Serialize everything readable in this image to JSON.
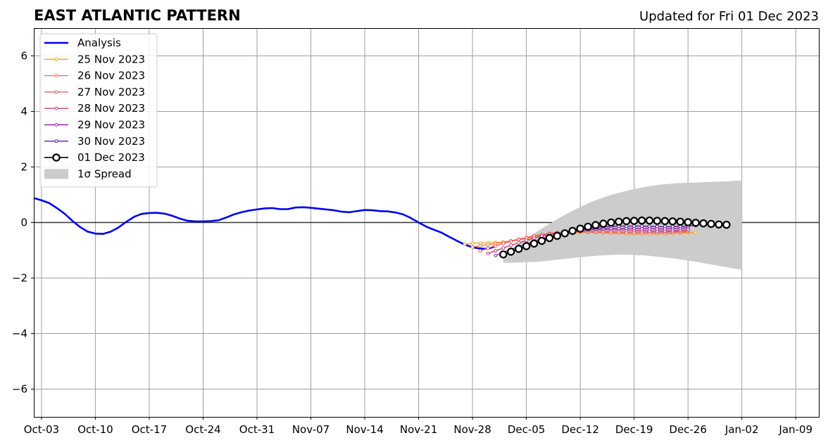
{
  "chart_data": {
    "type": "line",
    "title": "EAST ATLANTIC PATTERN",
    "subtitle": "Updated for Fri 01 Dec 2023",
    "xlabel": "",
    "ylabel": "",
    "ylim": [
      -7,
      7
    ],
    "xlim": [
      "2023-10-02",
      "2024-01-12"
    ],
    "y_ticks": [
      -6,
      -4,
      -2,
      0,
      2,
      4,
      6
    ],
    "y_tick_labels": [
      "−6",
      "−4",
      "−2",
      "0",
      "2",
      "4",
      "6"
    ],
    "x_ticks": [
      "2023-10-03",
      "2023-10-10",
      "2023-10-17",
      "2023-10-24",
      "2023-10-31",
      "2023-11-07",
      "2023-11-14",
      "2023-11-21",
      "2023-11-28",
      "2023-12-05",
      "2023-12-12",
      "2023-12-19",
      "2023-12-26",
      "2024-01-02",
      "2024-01-09"
    ],
    "x_tick_labels": [
      "Oct-03",
      "Oct-10",
      "Oct-17",
      "Oct-24",
      "Oct-31",
      "Nov-07",
      "Nov-14",
      "Nov-21",
      "Nov-28",
      "Dec-05",
      "Dec-12",
      "Dec-19",
      "Dec-26",
      "Jan-02",
      "Jan-09"
    ],
    "grid": true,
    "zero_line": true,
    "legend_position": "upper-left",
    "series": [
      {
        "name": "Analysis",
        "color": "#0000ee",
        "style": "analysis",
        "start_date": "2023-10-02",
        "values": [
          0.88,
          0.8,
          0.7,
          0.52,
          0.32,
          0.06,
          -0.16,
          -0.33,
          -0.4,
          -0.41,
          -0.33,
          -0.18,
          0.02,
          0.2,
          0.31,
          0.34,
          0.35,
          0.32,
          0.24,
          0.14,
          0.06,
          0.04,
          0.04,
          0.05,
          0.08,
          0.18,
          0.29,
          0.37,
          0.43,
          0.47,
          0.51,
          0.52,
          0.48,
          0.48,
          0.54,
          0.55,
          0.53,
          0.5,
          0.47,
          0.44,
          0.39,
          0.37,
          0.41,
          0.45,
          0.44,
          0.41,
          0.4,
          0.36,
          0.29,
          0.16,
          0.0,
          -0.15,
          -0.26,
          -0.37,
          -0.52,
          -0.66,
          -0.8,
          -0.89,
          -0.94,
          -0.95,
          -0.85
        ]
      },
      {
        "name": "25 Nov 2023",
        "color": "#f5a623",
        "style": "forecast",
        "start_date": "2023-11-27",
        "values": [
          -0.78,
          -0.75,
          -0.74,
          -0.73,
          -0.72,
          -0.7,
          -0.67,
          -0.63,
          -0.58,
          -0.53,
          -0.49,
          -0.45,
          -0.42,
          -0.4,
          -0.38,
          -0.36,
          -0.35,
          -0.35,
          -0.35,
          -0.36,
          -0.37,
          -0.38,
          -0.39,
          -0.4,
          -0.4,
          -0.4,
          -0.4,
          -0.39,
          -0.38,
          -0.37,
          -0.36
        ]
      },
      {
        "name": "26 Nov 2023",
        "color": "#f07c43",
        "style": "forecast",
        "start_date": "2023-11-28",
        "values": [
          -0.88,
          -0.84,
          -0.8,
          -0.76,
          -0.71,
          -0.66,
          -0.6,
          -0.54,
          -0.48,
          -0.43,
          -0.39,
          -0.36,
          -0.35,
          -0.34,
          -0.34,
          -0.35,
          -0.36,
          -0.37,
          -0.38,
          -0.39,
          -0.4,
          -0.41,
          -0.41,
          -0.41,
          -0.4,
          -0.39,
          -0.38,
          -0.36,
          -0.34
        ]
      },
      {
        "name": "27 Nov 2023",
        "color": "#e05a6a",
        "style": "forecast",
        "start_date": "2023-11-29",
        "values": [
          -1.02,
          -0.93,
          -0.84,
          -0.76,
          -0.68,
          -0.61,
          -0.55,
          -0.49,
          -0.44,
          -0.4,
          -0.37,
          -0.35,
          -0.34,
          -0.33,
          -0.33,
          -0.33,
          -0.33,
          -0.33,
          -0.34,
          -0.34,
          -0.35,
          -0.35,
          -0.35,
          -0.35,
          -0.34,
          -0.33,
          -0.32,
          -0.3
        ]
      },
      {
        "name": "28 Nov 2023",
        "color": "#c0407e",
        "style": "forecast",
        "start_date": "2023-11-30",
        "values": [
          -1.12,
          -1.02,
          -0.92,
          -0.82,
          -0.73,
          -0.64,
          -0.56,
          -0.49,
          -0.43,
          -0.38,
          -0.34,
          -0.31,
          -0.29,
          -0.27,
          -0.26,
          -0.26,
          -0.26,
          -0.26,
          -0.27,
          -0.28,
          -0.29,
          -0.3,
          -0.3,
          -0.3,
          -0.29,
          -0.28,
          -0.26
        ]
      },
      {
        "name": "29 Nov 2023",
        "color": "#9a1fa8",
        "style": "forecast",
        "start_date": "2023-12-01",
        "values": [
          -1.19,
          -1.08,
          -0.97,
          -0.87,
          -0.77,
          -0.68,
          -0.59,
          -0.51,
          -0.44,
          -0.38,
          -0.33,
          -0.29,
          -0.26,
          -0.24,
          -0.22,
          -0.21,
          -0.21,
          -0.21,
          -0.21,
          -0.22,
          -0.22,
          -0.23,
          -0.23,
          -0.22,
          -0.21,
          -0.19
        ]
      },
      {
        "name": "30 Nov 2023",
        "color": "#5b1aa8",
        "style": "forecast",
        "start_date": "2023-12-02",
        "values": [
          -1.19,
          -1.06,
          -0.94,
          -0.83,
          -0.72,
          -0.62,
          -0.53,
          -0.45,
          -0.38,
          -0.31,
          -0.26,
          -0.22,
          -0.19,
          -0.16,
          -0.14,
          -0.13,
          -0.13,
          -0.13,
          -0.13,
          -0.14,
          -0.15,
          -0.15,
          -0.15,
          -0.14,
          -0.13,
          -0.11
        ]
      },
      {
        "name": "01 Dec 2023",
        "color": "#000000",
        "style": "current",
        "start_date": "2023-12-02",
        "values": [
          -1.15,
          -1.05,
          -0.95,
          -0.85,
          -0.76,
          -0.66,
          -0.56,
          -0.48,
          -0.39,
          -0.3,
          -0.22,
          -0.15,
          -0.09,
          -0.04,
          0.0,
          0.03,
          0.05,
          0.06,
          0.07,
          0.07,
          0.06,
          0.05,
          0.04,
          0.03,
          0.01,
          -0.01,
          -0.03,
          -0.05,
          -0.07,
          -0.08
        ]
      }
    ],
    "spread": {
      "name": "1σ Spread",
      "color": "#cccccc",
      "start_date": "2023-12-02",
      "upper": [
        -1.15,
        -0.98,
        -0.78,
        -0.58,
        -0.4,
        -0.22,
        -0.05,
        0.12,
        0.28,
        0.42,
        0.56,
        0.69,
        0.8,
        0.9,
        0.99,
        1.07,
        1.14,
        1.21,
        1.26,
        1.31,
        1.35,
        1.38,
        1.4,
        1.42,
        1.43,
        1.44,
        1.45,
        1.46,
        1.47,
        1.48,
        1.5,
        1.51
      ],
      "lower": [
        -1.45,
        -1.45,
        -1.44,
        -1.43,
        -1.42,
        -1.4,
        -1.37,
        -1.34,
        -1.31,
        -1.28,
        -1.25,
        -1.22,
        -1.2,
        -1.18,
        -1.17,
        -1.16,
        -1.16,
        -1.17,
        -1.18,
        -1.2,
        -1.23,
        -1.26,
        -1.29,
        -1.33,
        -1.37,
        -1.41,
        -1.46,
        -1.51,
        -1.56,
        -1.61,
        -1.66,
        -1.7
      ]
    }
  }
}
